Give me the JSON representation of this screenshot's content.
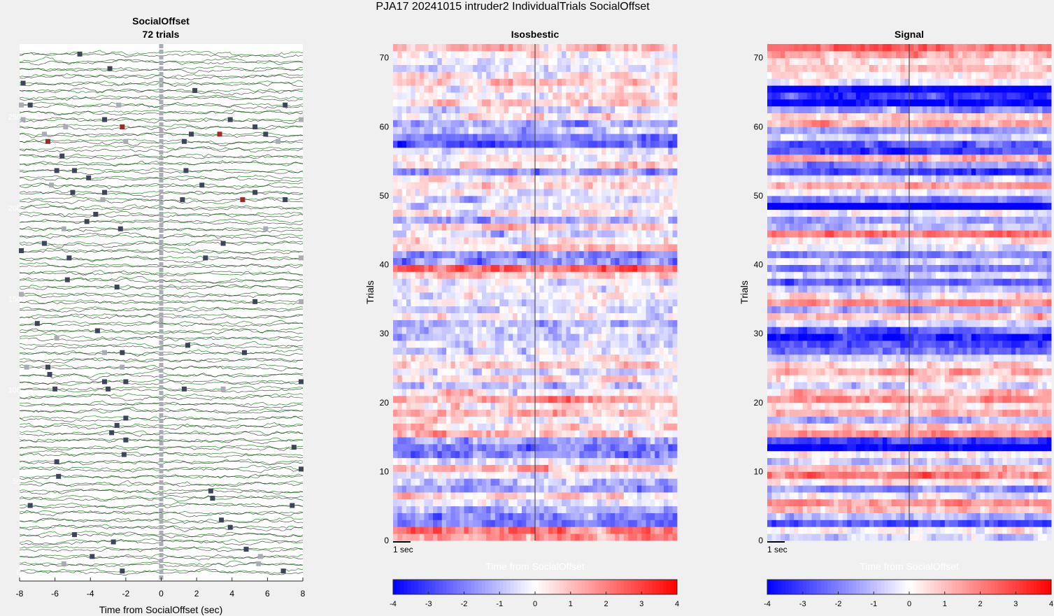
{
  "figure_title": "PJA17 20241015  intruder2 IndividualTrials SocialOffset",
  "colors": {
    "trace_green": "#2e8b2e",
    "trace_black": "#222222",
    "marker_gray": "#a9abb5",
    "marker_dark": "#3d4658",
    "marker_red": "#a02828",
    "hm_neg": "#0000ff",
    "hm_pos": "#ff0000",
    "hm_mid": "#ffffff"
  },
  "chart_data": [
    {
      "type": "line",
      "name": "traces",
      "title_line1": "SocialOffset",
      "title_line2": "72 trials",
      "xlabel": "Time from SocialOffset (sec)",
      "xlim": [
        -8,
        8
      ],
      "xticks": [
        -8,
        -6,
        -4,
        -2,
        0,
        2,
        4,
        6,
        8
      ],
      "ylim": [
        -5,
        290
      ],
      "yticks": [
        0,
        50,
        100,
        150,
        200,
        250
      ],
      "n_trials": 72,
      "event_time": 0,
      "series": [
        {
          "color_key": "trace_green"
        },
        {
          "color_key": "trace_black"
        }
      ],
      "markers": [
        {
          "t": -4.6,
          "trial": 71,
          "c": "marker_dark"
        },
        {
          "t": -2.9,
          "trial": 69,
          "c": "marker_dark"
        },
        {
          "t": -7.8,
          "trial": 67,
          "c": "marker_dark"
        },
        {
          "t": 1.9,
          "trial": 66,
          "c": "marker_dark"
        },
        {
          "t": -7.9,
          "trial": 64,
          "c": "marker_gray"
        },
        {
          "t": -7.4,
          "trial": 64,
          "c": "marker_dark"
        },
        {
          "t": -2.4,
          "trial": 64,
          "c": "marker_gray"
        },
        {
          "t": 7.0,
          "trial": 64,
          "c": "marker_dark"
        },
        {
          "t": -7.8,
          "trial": 62,
          "c": "marker_gray"
        },
        {
          "t": -3.2,
          "trial": 62,
          "c": "marker_dark"
        },
        {
          "t": 3.9,
          "trial": 62,
          "c": "marker_dark"
        },
        {
          "t": 7.9,
          "trial": 62,
          "c": "marker_gray"
        },
        {
          "t": -5.4,
          "trial": 61,
          "c": "marker_gray"
        },
        {
          "t": -2.2,
          "trial": 61,
          "c": "marker_red"
        },
        {
          "t": 5.3,
          "trial": 61,
          "c": "marker_dark"
        },
        {
          "t": -6.6,
          "trial": 60,
          "c": "marker_gray"
        },
        {
          "t": 1.7,
          "trial": 60,
          "c": "marker_dark"
        },
        {
          "t": 3.3,
          "trial": 60,
          "c": "marker_red"
        },
        {
          "t": 5.9,
          "trial": 60,
          "c": "marker_dark"
        },
        {
          "t": -6.4,
          "trial": 59,
          "c": "marker_red"
        },
        {
          "t": -2.0,
          "trial": 59,
          "c": "marker_gray"
        },
        {
          "t": 1.3,
          "trial": 59,
          "c": "marker_dark"
        },
        {
          "t": 6.6,
          "trial": 59,
          "c": "marker_gray"
        },
        {
          "t": -5.6,
          "trial": 57,
          "c": "marker_dark"
        },
        {
          "t": -5.9,
          "trial": 55,
          "c": "marker_dark"
        },
        {
          "t": -4.9,
          "trial": 55,
          "c": "marker_dark"
        },
        {
          "t": 1.4,
          "trial": 55,
          "c": "marker_dark"
        },
        {
          "t": -4.1,
          "trial": 54,
          "c": "marker_dark"
        },
        {
          "t": -6.2,
          "trial": 53,
          "c": "marker_gray"
        },
        {
          "t": 2.3,
          "trial": 53,
          "c": "marker_dark"
        },
        {
          "t": -5.0,
          "trial": 52,
          "c": "marker_dark"
        },
        {
          "t": -3.2,
          "trial": 52,
          "c": "marker_dark"
        },
        {
          "t": 5.3,
          "trial": 52,
          "c": "marker_dark"
        },
        {
          "t": -3.3,
          "trial": 51,
          "c": "marker_gray"
        },
        {
          "t": 1.2,
          "trial": 51,
          "c": "marker_dark"
        },
        {
          "t": 4.6,
          "trial": 51,
          "c": "marker_red"
        },
        {
          "t": 7.0,
          "trial": 51,
          "c": "marker_dark"
        },
        {
          "t": -3.7,
          "trial": 49,
          "c": "marker_dark"
        },
        {
          "t": -4.2,
          "trial": 48,
          "c": "marker_dark"
        },
        {
          "t": -5.5,
          "trial": 47,
          "c": "marker_gray"
        },
        {
          "t": -2.3,
          "trial": 47,
          "c": "marker_dark"
        },
        {
          "t": 5.9,
          "trial": 47,
          "c": "marker_gray"
        },
        {
          "t": -6.6,
          "trial": 45,
          "c": "marker_dark"
        },
        {
          "t": 3.5,
          "trial": 45,
          "c": "marker_dark"
        },
        {
          "t": -7.9,
          "trial": 44,
          "c": "marker_dark"
        },
        {
          "t": -5.2,
          "trial": 43,
          "c": "marker_dark"
        },
        {
          "t": 2.5,
          "trial": 43,
          "c": "marker_dark"
        },
        {
          "t": 7.9,
          "trial": 43,
          "c": "marker_gray"
        },
        {
          "t": -5.3,
          "trial": 40,
          "c": "marker_dark"
        },
        {
          "t": -2.5,
          "trial": 39,
          "c": "marker_dark"
        },
        {
          "t": -7.9,
          "trial": 38,
          "c": "marker_gray"
        },
        {
          "t": 5.3,
          "trial": 37,
          "c": "marker_dark"
        },
        {
          "t": 7.9,
          "trial": 37,
          "c": "marker_gray"
        },
        {
          "t": -7.0,
          "trial": 34,
          "c": "marker_dark"
        },
        {
          "t": -3.6,
          "trial": 33,
          "c": "marker_dark"
        },
        {
          "t": -5.9,
          "trial": 32,
          "c": "marker_gray"
        },
        {
          "t": 1.5,
          "trial": 31,
          "c": "marker_dark"
        },
        {
          "t": -3.2,
          "trial": 30,
          "c": "marker_gray"
        },
        {
          "t": -2.2,
          "trial": 30,
          "c": "marker_dark"
        },
        {
          "t": 4.7,
          "trial": 30,
          "c": "marker_dark"
        },
        {
          "t": -7.6,
          "trial": 28,
          "c": "marker_gray"
        },
        {
          "t": -6.4,
          "trial": 28,
          "c": "marker_dark"
        },
        {
          "t": -2.2,
          "trial": 28,
          "c": "marker_gray"
        },
        {
          "t": -6.3,
          "trial": 27,
          "c": "marker_dark"
        },
        {
          "t": -3.2,
          "trial": 26,
          "c": "marker_dark"
        },
        {
          "t": -2.0,
          "trial": 26,
          "c": "marker_dark"
        },
        {
          "t": 7.9,
          "trial": 26,
          "c": "marker_dark"
        },
        {
          "t": -6.0,
          "trial": 25,
          "c": "marker_dark"
        },
        {
          "t": -3.0,
          "trial": 25,
          "c": "marker_dark"
        },
        {
          "t": 1.3,
          "trial": 25,
          "c": "marker_dark"
        },
        {
          "t": 3.5,
          "trial": 25,
          "c": "marker_gray"
        },
        {
          "t": -2.0,
          "trial": 21,
          "c": "marker_dark"
        },
        {
          "t": -2.5,
          "trial": 20,
          "c": "marker_dark"
        },
        {
          "t": -2.8,
          "trial": 19,
          "c": "marker_dark"
        },
        {
          "t": -2.0,
          "trial": 18,
          "c": "marker_dark"
        },
        {
          "t": 7.5,
          "trial": 17,
          "c": "marker_dark"
        },
        {
          "t": -2.1,
          "trial": 16,
          "c": "marker_dark"
        },
        {
          "t": -5.9,
          "trial": 15,
          "c": "marker_dark"
        },
        {
          "t": 7.9,
          "trial": 14,
          "c": "marker_dark"
        },
        {
          "t": -5.8,
          "trial": 13,
          "c": "marker_dark"
        },
        {
          "t": 2.8,
          "trial": 11,
          "c": "marker_dark"
        },
        {
          "t": 2.9,
          "trial": 10,
          "c": "marker_dark"
        },
        {
          "t": -7.4,
          "trial": 9,
          "c": "marker_dark"
        },
        {
          "t": 7.4,
          "trial": 9,
          "c": "marker_dark"
        },
        {
          "t": 3.4,
          "trial": 7,
          "c": "marker_dark"
        },
        {
          "t": 3.9,
          "trial": 6,
          "c": "marker_dark"
        },
        {
          "t": -4.9,
          "trial": 5,
          "c": "marker_dark"
        },
        {
          "t": -2.7,
          "trial": 4,
          "c": "marker_dark"
        },
        {
          "t": 4.8,
          "trial": 3,
          "c": "marker_dark"
        },
        {
          "t": -3.9,
          "trial": 2,
          "c": "marker_dark"
        },
        {
          "t": 5.6,
          "trial": 2,
          "c": "marker_gray"
        },
        {
          "t": -5.5,
          "trial": 1,
          "c": "marker_gray"
        },
        {
          "t": 5.5,
          "trial": 1,
          "c": "marker_gray"
        },
        {
          "t": -2.2,
          "trial": 0,
          "c": "marker_dark"
        },
        {
          "t": 6.9,
          "trial": 0,
          "c": "marker_dark"
        }
      ]
    },
    {
      "type": "heatmap",
      "name": "isosbestic",
      "title": "Isosbestic",
      "ylabel": "Trials",
      "xlabel": "Time from SocialOffset",
      "xlim": [
        -8,
        8
      ],
      "ylim": [
        0,
        72
      ],
      "yticks": [
        0,
        10,
        20,
        30,
        40,
        50,
        60,
        70
      ],
      "scalebar_label": "1 sec",
      "colorbar": {
        "range": [
          -4,
          4
        ],
        "ticks": [
          -4,
          -3,
          -2,
          -1,
          0,
          1,
          2,
          3,
          4
        ]
      },
      "rows": 72,
      "cols": 64,
      "row_bias": [
        0.9,
        1.0,
        -1.2,
        -0.9,
        -0.6,
        -0.2,
        0.3,
        -0.8,
        -0.6,
        -0.2,
        0.6,
        -0.3,
        -0.9,
        -1.0,
        -0.7,
        0.4,
        0.3,
        0.1,
        0.5,
        0.3,
        0.7,
        0.0,
        -0.4,
        0.2,
        -0.3,
        0.4,
        0.0,
        -0.2,
        -0.2,
        -0.5,
        -0.4,
        -0.6,
        0.1,
        -0.3,
        -0.2,
        -0.1,
        -0.1,
        -0.2,
        0.4,
        1.2,
        -0.8,
        -0.9,
        0.4,
        0.0,
        -0.4,
        0.3,
        -0.7,
        0.3,
        -0.1,
        -0.3,
        0.0,
        0.2,
        0.2,
        -0.8,
        0.1,
        0.2,
        -0.2,
        -1.3,
        -1.0,
        -0.4,
        -0.8,
        0.0,
        -0.3,
        0.4,
        0.2,
        0.1,
        0.4,
        0.2,
        -0.3,
        -0.1,
        0.1,
        0.5
      ],
      "noise": 1.1,
      "seed": 11
    },
    {
      "type": "heatmap",
      "name": "signal",
      "title": "Signal",
      "ylabel": "Trials",
      "xlabel": "Time from SocialOffset",
      "xlim": [
        -8,
        8
      ],
      "ylim": [
        0,
        72
      ],
      "yticks": [
        0,
        10,
        20,
        30,
        40,
        50,
        60,
        70
      ],
      "scalebar_label": "1 sec",
      "colorbar": {
        "range": [
          -4,
          4
        ],
        "ticks": [
          -4,
          -3,
          -2,
          -1,
          0,
          1,
          2,
          3,
          4
        ]
      },
      "rows": 72,
      "cols": 64,
      "row_bias": [
        -0.3,
        0.1,
        -1.4,
        -0.6,
        0.5,
        0.9,
        -0.2,
        -0.9,
        0.2,
        1.1,
        0.6,
        -0.4,
        0.1,
        -2.2,
        -1.4,
        0.9,
        0.4,
        -0.6,
        0.7,
        0.2,
        1.0,
        0.5,
        -0.3,
        0.3,
        0.6,
        0.2,
        -0.3,
        -1.1,
        -1.3,
        -1.8,
        -1.2,
        -0.4,
        0.5,
        -0.6,
        0.9,
        0.2,
        -0.4,
        -1.2,
        -0.2,
        -1.0,
        -0.4,
        -1.0,
        -0.2,
        0.0,
        1.0,
        -0.5,
        -0.7,
        0.0,
        -2.3,
        -1.1,
        -0.1,
        0.7,
        -0.3,
        -1.4,
        -0.8,
        0.6,
        -1.4,
        -1.3,
        -0.2,
        -0.9,
        0.6,
        0.4,
        -0.8,
        -2.0,
        -1.5,
        -2.1,
        -0.1,
        0.2,
        0.4,
        0.3,
        0.6,
        1.2
      ],
      "noise": 0.9,
      "seed": 23
    }
  ]
}
